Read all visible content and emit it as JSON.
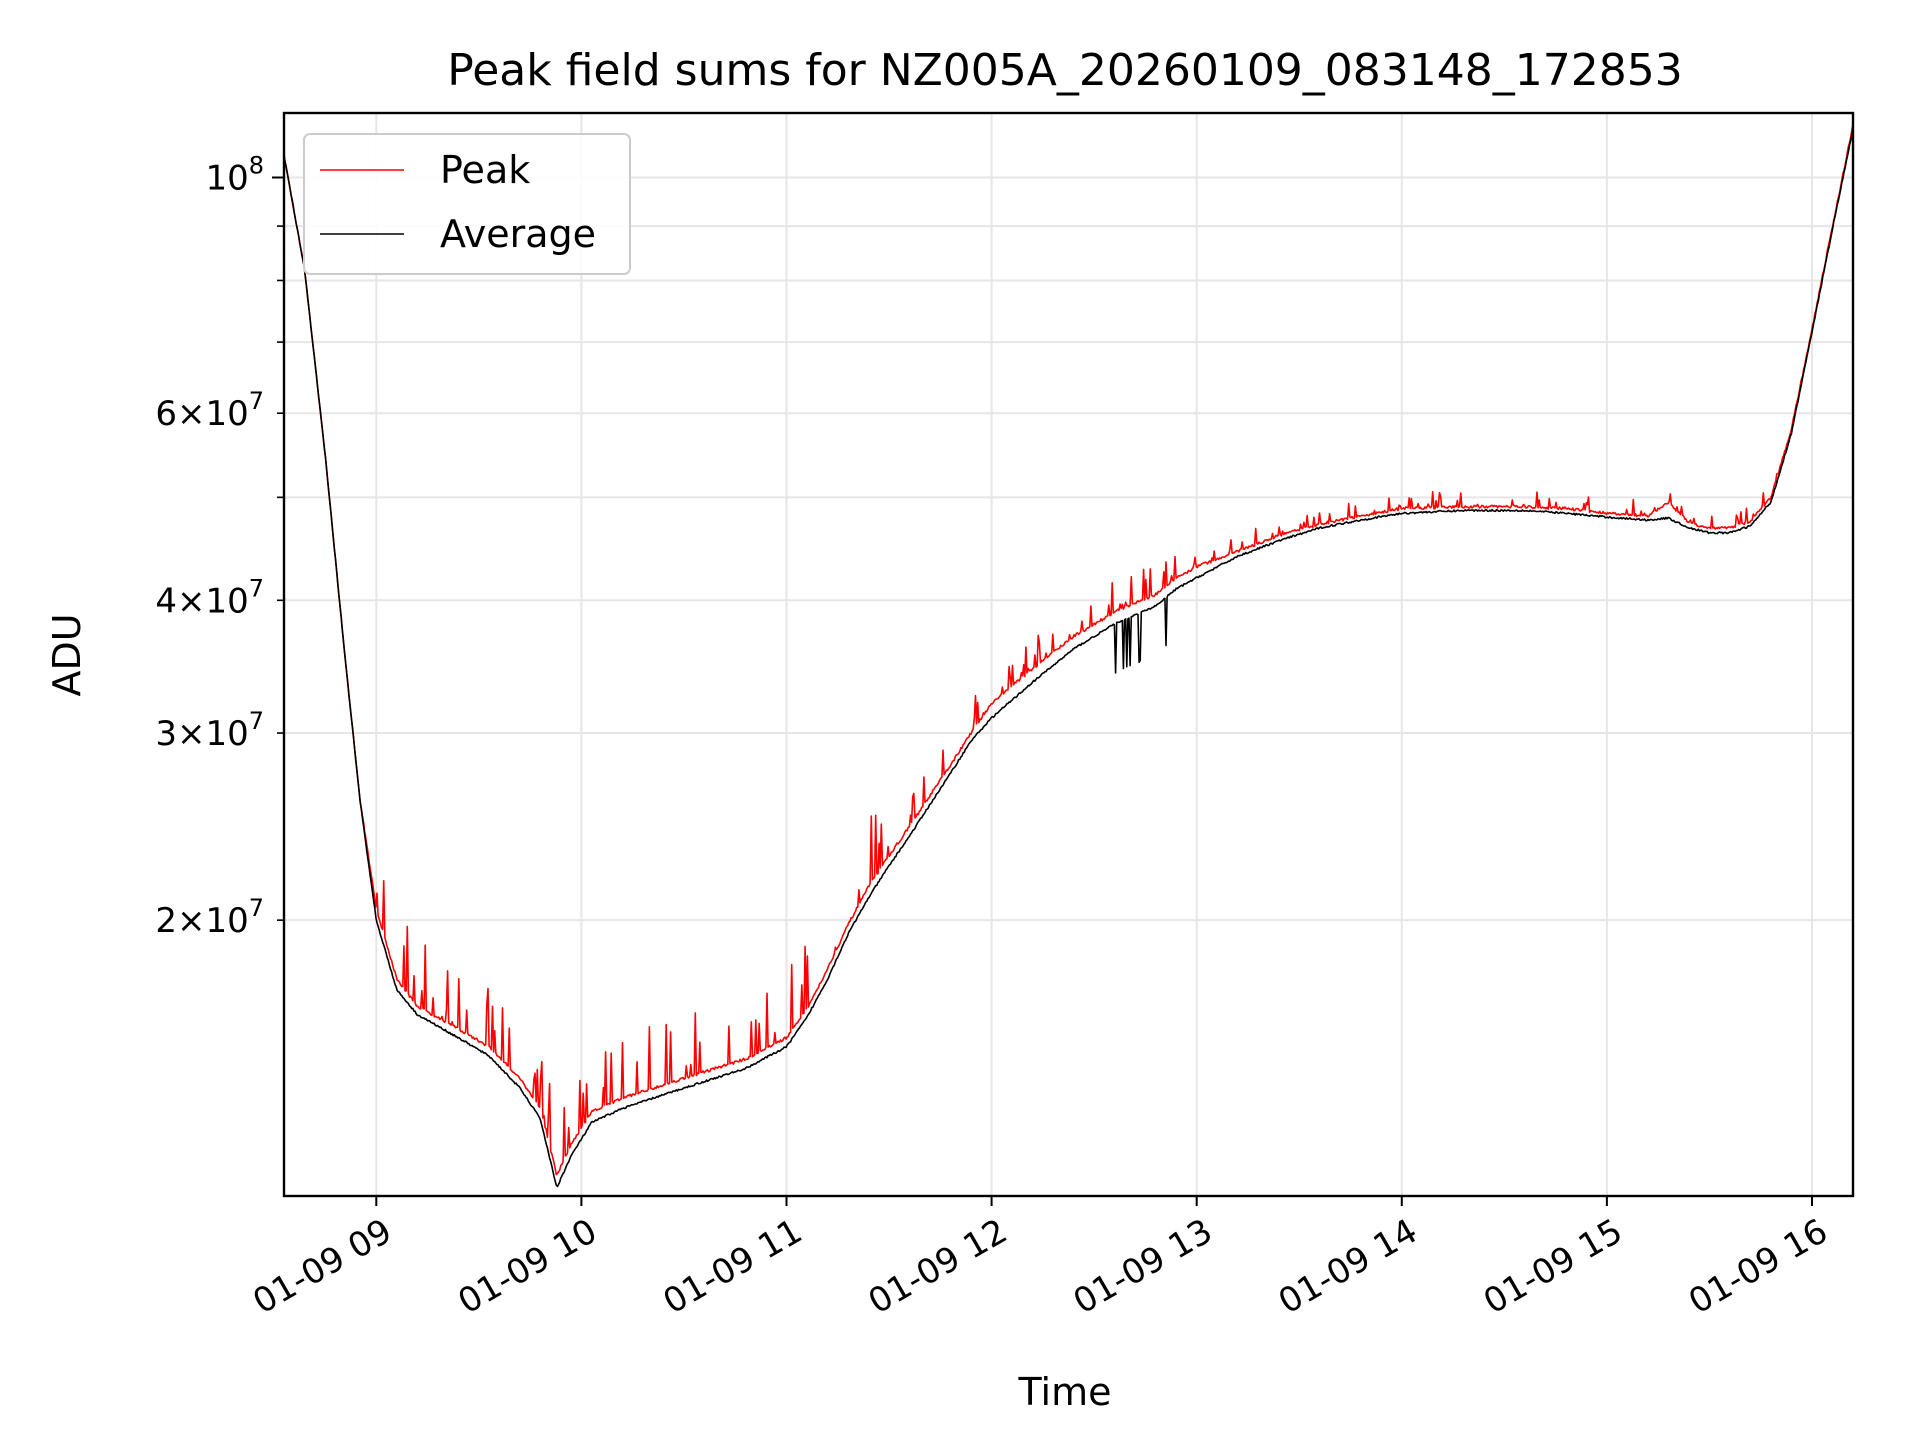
{
  "chart_data": {
    "type": "line",
    "title": "Peak field sums for NZ005A_20260109_083148_172853",
    "xlabel": "Time",
    "ylabel": "ADU",
    "yscale": "log",
    "grid": true,
    "legend_placement": "top-left",
    "xlim_hours": [
      8.55,
      16.2
    ],
    "ylim": [
      11000000,
      115000000
    ],
    "x_ticks": [
      {
        "value": 9,
        "label": "01-09 09"
      },
      {
        "value": 10,
        "label": "01-09 10"
      },
      {
        "value": 11,
        "label": "01-09 11"
      },
      {
        "value": 12,
        "label": "01-09 12"
      },
      {
        "value": 13,
        "label": "01-09 13"
      },
      {
        "value": 14,
        "label": "01-09 14"
      },
      {
        "value": 15,
        "label": "01-09 15"
      },
      {
        "value": 16,
        "label": "01-09 16"
      }
    ],
    "y_ticks_major": [
      {
        "value": 100000000,
        "base": "10",
        "exp": "8"
      }
    ],
    "y_ticks_labeled_minor": [
      {
        "value": 20000000,
        "mant": "2",
        "exp": "7"
      },
      {
        "value": 30000000,
        "mant": "3",
        "exp": "7"
      },
      {
        "value": 40000000,
        "mant": "4",
        "exp": "7"
      },
      {
        "value": 60000000,
        "mant": "6",
        "exp": "7"
      }
    ],
    "y_ticks_unlabeled_minor": [
      50000000,
      70000000,
      80000000,
      90000000
    ],
    "series": [
      {
        "name": "Peak",
        "color": "#ff0000",
        "spiky": true,
        "x": [
          8.55,
          8.65,
          8.75,
          8.85,
          8.92,
          9.0,
          9.1,
          9.2,
          9.4,
          9.55,
          9.7,
          9.8,
          9.88,
          9.95,
          10.05,
          10.2,
          10.4,
          10.6,
          10.8,
          11.0,
          11.1,
          11.2,
          11.3,
          11.4,
          11.5,
          11.6,
          11.7,
          11.8,
          11.9,
          12.0,
          12.2,
          12.4,
          12.6,
          12.8,
          12.9,
          13.0,
          13.2,
          13.4,
          13.6,
          13.8,
          14.0,
          14.3,
          14.6,
          14.8,
          15.0,
          15.2,
          15.3,
          15.4,
          15.5,
          15.6,
          15.7,
          15.8,
          15.9,
          16.0,
          16.1,
          16.2
        ],
        "y": [
          105000000,
          82000000,
          55000000,
          35000000,
          26000000,
          20500000,
          17600000,
          16600000,
          15800000,
          15200000,
          14200000,
          13300000,
          11500000,
          12300000,
          13200000,
          13600000,
          14000000,
          14400000,
          14800000,
          15500000,
          16500000,
          18000000,
          19800000,
          21500000,
          23000000,
          24500000,
          26200000,
          28000000,
          30000000,
          32000000,
          34500000,
          37000000,
          39000000,
          40500000,
          42000000,
          43000000,
          44500000,
          46000000,
          47200000,
          48000000,
          48800000,
          49000000,
          49000000,
          48800000,
          48300000,
          48000000,
          49500000,
          47300000,
          46800000,
          46800000,
          47500000,
          50000000,
          58000000,
          72000000,
          90000000,
          112000000
        ]
      },
      {
        "name": "Average",
        "color": "#000000",
        "spiky": false,
        "x": [
          8.55,
          8.65,
          8.75,
          8.85,
          8.92,
          9.0,
          9.1,
          9.2,
          9.4,
          9.55,
          9.7,
          9.8,
          9.88,
          9.95,
          10.05,
          10.2,
          10.4,
          10.6,
          10.8,
          11.0,
          11.1,
          11.2,
          11.3,
          11.4,
          11.5,
          11.6,
          11.7,
          11.8,
          11.9,
          12.0,
          12.2,
          12.4,
          12.6,
          12.8,
          12.9,
          13.0,
          13.2,
          13.4,
          13.6,
          13.8,
          14.0,
          14.3,
          14.6,
          14.8,
          15.0,
          15.2,
          15.3,
          15.4,
          15.5,
          15.6,
          15.7,
          15.8,
          15.9,
          16.0,
          16.1,
          16.2
        ],
        "y": [
          105000000,
          82000000,
          55000000,
          35000000,
          26000000,
          20000000,
          17200000,
          16300000,
          15500000,
          14900000,
          13900000,
          13000000,
          11200000,
          12000000,
          12900000,
          13300000,
          13700000,
          14100000,
          14500000,
          15200000,
          16200000,
          17600000,
          19400000,
          21000000,
          22500000,
          24000000,
          25700000,
          27500000,
          29500000,
          31000000,
          33500000,
          36000000,
          38000000,
          39500000,
          41000000,
          42000000,
          44000000,
          45500000,
          46800000,
          47600000,
          48300000,
          48600000,
          48600000,
          48300000,
          47900000,
          47600000,
          47800000,
          46800000,
          46300000,
          46300000,
          47000000,
          49500000,
          57500000,
          71500000,
          89500000,
          111000000
        ]
      }
    ]
  }
}
